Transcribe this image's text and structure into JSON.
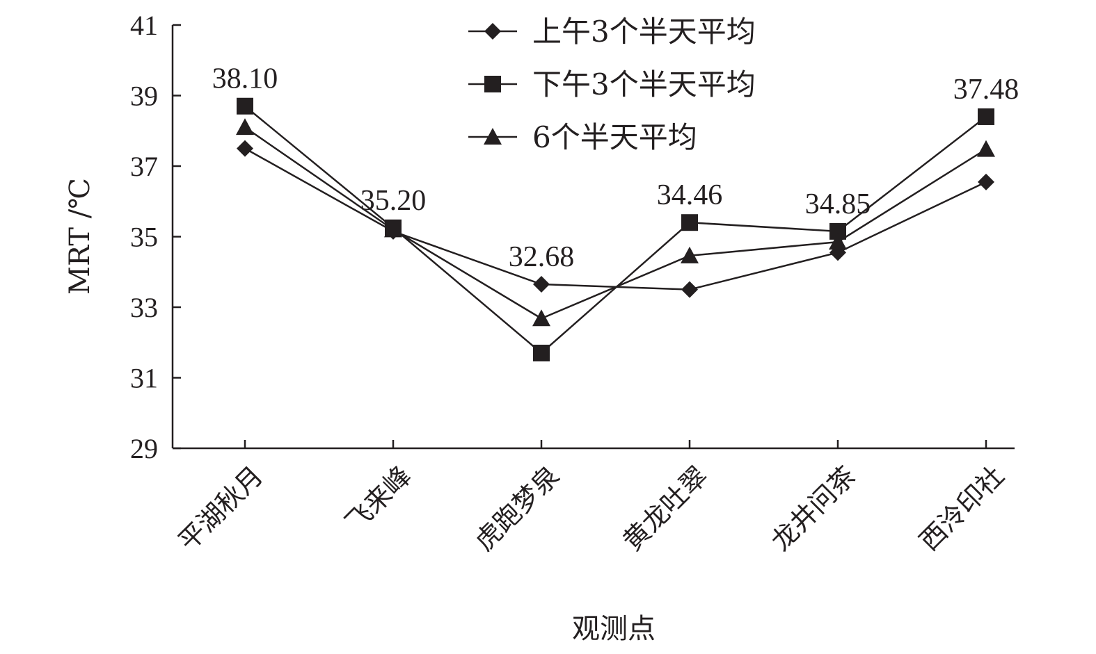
{
  "chart_data": {
    "type": "line",
    "xlabel": "观测点",
    "ylabel": "MRT /℃",
    "ylim": [
      29,
      41
    ],
    "yticks": [
      29,
      31,
      33,
      35,
      37,
      39,
      41
    ],
    "grid": false,
    "legend_position": "top-center",
    "line_color": "#231f20",
    "categories": [
      "平湖秋月",
      "飞来峰",
      "虎跑梦泉",
      "黄龙吐翠",
      "龙井问茶",
      "西泠印社"
    ],
    "series": [
      {
        "name": "上午3个半天平均",
        "marker": "diamond",
        "values": [
          37.5,
          35.15,
          33.65,
          33.5,
          34.55,
          36.55
        ]
      },
      {
        "name": "下午3个半天平均",
        "marker": "square",
        "values": [
          38.7,
          35.25,
          31.7,
          35.4,
          35.15,
          38.4
        ]
      },
      {
        "name": "6个半天平均",
        "marker": "triangle",
        "values": [
          38.1,
          35.2,
          32.68,
          34.46,
          34.85,
          37.48
        ]
      }
    ],
    "data_labels": [
      {
        "category_index": 0,
        "text": "38.10"
      },
      {
        "category_index": 1,
        "text": "35.20"
      },
      {
        "category_index": 2,
        "text": "32.68"
      },
      {
        "category_index": 3,
        "text": "34.46"
      },
      {
        "category_index": 4,
        "text": "34.85"
      },
      {
        "category_index": 5,
        "text": "37.48"
      }
    ]
  }
}
